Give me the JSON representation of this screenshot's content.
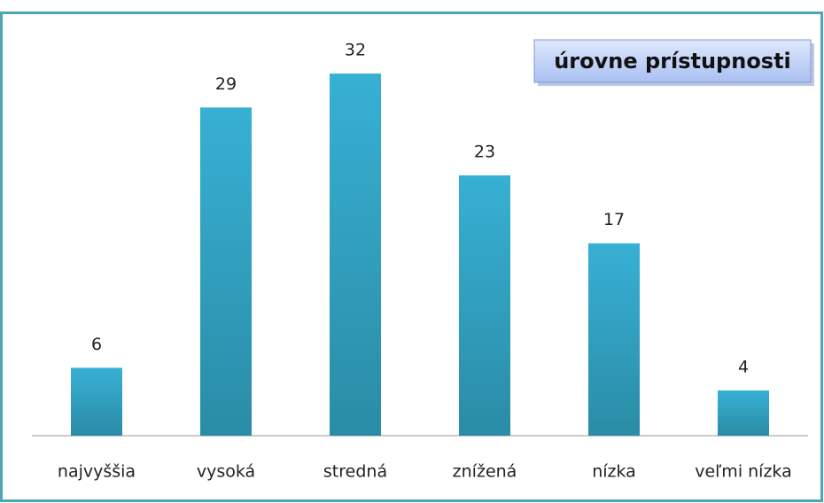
{
  "chart_data": {
    "type": "bar",
    "categories": [
      "najvyššia",
      "vysoká",
      "stredná",
      "znížená",
      "nízka",
      "veľmi nízka"
    ],
    "series": [
      {
        "name": "úrovne prístupnosti",
        "color": "#37b0d4",
        "values": [
          6,
          29,
          32,
          23,
          17,
          4
        ]
      }
    ],
    "legend": "top-right"
  }
}
